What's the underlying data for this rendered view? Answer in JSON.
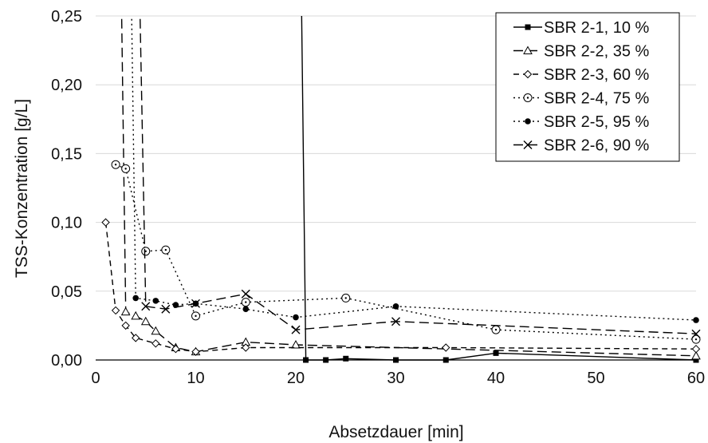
{
  "chart_data": {
    "type": "line",
    "xlabel": "Absetzdauer [min]",
    "ylabel": "TSS-Konzentration [g/L]",
    "xlim": [
      0,
      60
    ],
    "ylim": [
      0,
      0.25
    ],
    "x_ticks": [
      "0",
      "10",
      "20",
      "30",
      "40",
      "50",
      "60"
    ],
    "x_tick_values": [
      0,
      10,
      20,
      30,
      40,
      50,
      60
    ],
    "y_ticks": [
      "0,00",
      "0,05",
      "0,10",
      "0,15",
      "0,20",
      "0,25"
    ],
    "y_tick_values": [
      0,
      0.05,
      0.1,
      0.15,
      0.2,
      0.25
    ],
    "grid": "horizontal",
    "legend_position": "top-right",
    "series": [
      {
        "name": "SBR 2-1, 10 %",
        "line": "solid",
        "marker": "square-filled",
        "x": [
          20.5,
          21,
          23,
          25,
          30,
          35,
          40,
          60
        ],
        "y": [
          0.3,
          0.0,
          0.0,
          0.001,
          0.0,
          0.0,
          0.005,
          0.0
        ]
      },
      {
        "name": "SBR 2-2, 35 %",
        "line": "longdash",
        "marker": "triangle-open",
        "x": [
          2.5,
          3,
          4,
          5,
          6,
          8,
          10,
          15,
          20,
          60
        ],
        "y": [
          0.3,
          0.035,
          0.032,
          0.028,
          0.021,
          0.009,
          0.006,
          0.013,
          0.011,
          0.003
        ]
      },
      {
        "name": "SBR 2-3, 60 %",
        "line": "dash",
        "marker": "diamond-open",
        "x": [
          1,
          2,
          3,
          4,
          6,
          8,
          10,
          15,
          35,
          60
        ],
        "y": [
          0.1,
          0.036,
          0.025,
          0.016,
          0.012,
          0.008,
          0.006,
          0.009,
          0.009,
          0.008
        ]
      },
      {
        "name": "SBR 2-4, 75 %",
        "line": "dot",
        "marker": "circle-dot",
        "x": [
          2,
          3,
          5,
          7,
          10,
          15,
          25,
          40,
          60
        ],
        "y": [
          0.142,
          0.139,
          0.079,
          0.08,
          0.032,
          0.042,
          0.045,
          0.022,
          0.015
        ]
      },
      {
        "name": "SBR 2-5, 95 %",
        "line": "dot",
        "marker": "circle-filled",
        "x": [
          3.5,
          4,
          6,
          8,
          10,
          15,
          20,
          30,
          60
        ],
        "y": [
          0.3,
          0.045,
          0.043,
          0.04,
          0.041,
          0.037,
          0.031,
          0.039,
          0.029
        ]
      },
      {
        "name": "SBR 2-6, 90 %",
        "line": "longdash",
        "marker": "x",
        "x": [
          4.3,
          5,
          7,
          10,
          15,
          20,
          30,
          60
        ],
        "y": [
          0.3,
          0.039,
          0.037,
          0.041,
          0.048,
          0.022,
          0.028,
          0.019
        ]
      }
    ]
  }
}
